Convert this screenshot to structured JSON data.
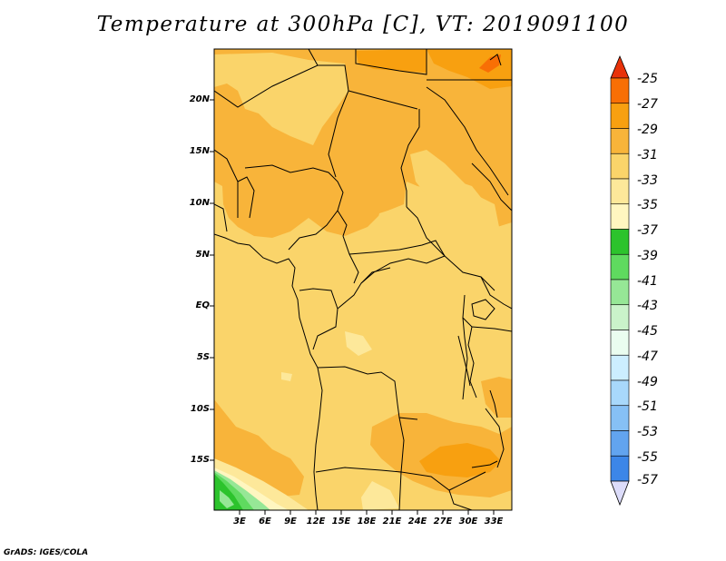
{
  "title": "Temperature at 300hPa [C], VT: 2019091100",
  "footer": "GrADS: IGES/COLA",
  "map": {
    "lat_labels": [
      "20N",
      "15N",
      "10N",
      "5N",
      "EQ",
      "5S",
      "10S",
      "15S"
    ],
    "lon_labels": [
      "3E",
      "6E",
      "9E",
      "12E",
      "15E",
      "18E",
      "21E",
      "24E",
      "27E",
      "30E",
      "33E"
    ],
    "lon_range": [
      0,
      35
    ],
    "lat_range": [
      -20,
      25
    ]
  },
  "colorbar": {
    "labels": [
      "-25",
      "-27",
      "-29",
      "-31",
      "-33",
      "-35",
      "-37",
      "-39",
      "-41",
      "-43",
      "-45",
      "-47",
      "-49",
      "-51",
      "-53",
      "-55",
      "-57"
    ],
    "colors": [
      "#e8320a",
      "#f86f05",
      "#f8a010",
      "#f8b43a",
      "#fad46a",
      "#fde89a",
      "#fff6c0",
      "#2cc32c",
      "#5fda5f",
      "#96e796",
      "#caf3ca",
      "#eafdf0",
      "#cceeff",
      "#a8d8fb",
      "#86c0f5",
      "#62a4ef",
      "#3c86e8",
      "#1d63d6",
      "#0f48b6",
      "#0a2b88"
    ],
    "top_arrow_color": "#e8320a",
    "bottom_arrow_color": "#dcdcfa"
  },
  "field_colors": {
    "t35": "#fff6c0",
    "t33": "#fde89a",
    "t31": "#fad46a",
    "t29": "#f8b43a",
    "t27": "#f8a010",
    "t25": "#f86f05",
    "green_dark": "#2cc32c",
    "green_mid": "#5fda5f",
    "green_light": "#96e796"
  }
}
